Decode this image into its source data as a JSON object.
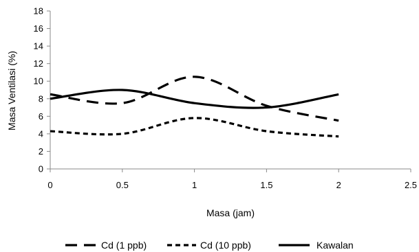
{
  "chart_data": {
    "type": "line",
    "title": "",
    "xlabel": "Masa (jam)",
    "ylabel": "Masa Ventilasi (%)",
    "xlim": [
      0,
      2.5
    ],
    "ylim": [
      0,
      18
    ],
    "xticks": [
      0,
      0.5,
      1,
      1.5,
      2,
      2.5
    ],
    "xtick_labels": [
      "0",
      "0.5",
      "1",
      "1.5",
      "2",
      "2.5"
    ],
    "yticks": [
      0,
      2,
      4,
      6,
      8,
      10,
      12,
      14,
      16,
      18
    ],
    "ytick_labels": [
      "0",
      "2",
      "4",
      "6",
      "8",
      "10",
      "12",
      "14",
      "16",
      "18"
    ],
    "grid": false,
    "legend_position": "bottom",
    "smooth": true,
    "series": [
      {
        "name": "Cd (1 ppb)",
        "style": "dashed",
        "x": [
          0,
          0.5,
          1,
          1.5,
          2
        ],
        "y": [
          8.5,
          7.5,
          10.5,
          7.2,
          5.5
        ]
      },
      {
        "name": "Cd (10 ppb)",
        "style": "short-dashed",
        "x": [
          0,
          0.5,
          1,
          1.5,
          2
        ],
        "y": [
          4.3,
          4.0,
          5.8,
          4.3,
          3.7
        ]
      },
      {
        "name": "Kawalan",
        "style": "solid",
        "x": [
          0,
          0.5,
          1,
          1.5,
          2
        ],
        "y": [
          8.0,
          9.0,
          7.5,
          7.0,
          8.5
        ]
      }
    ],
    "colors": {
      "line": "#000000",
      "axis": "#888888",
      "background": "#ffffff"
    }
  }
}
